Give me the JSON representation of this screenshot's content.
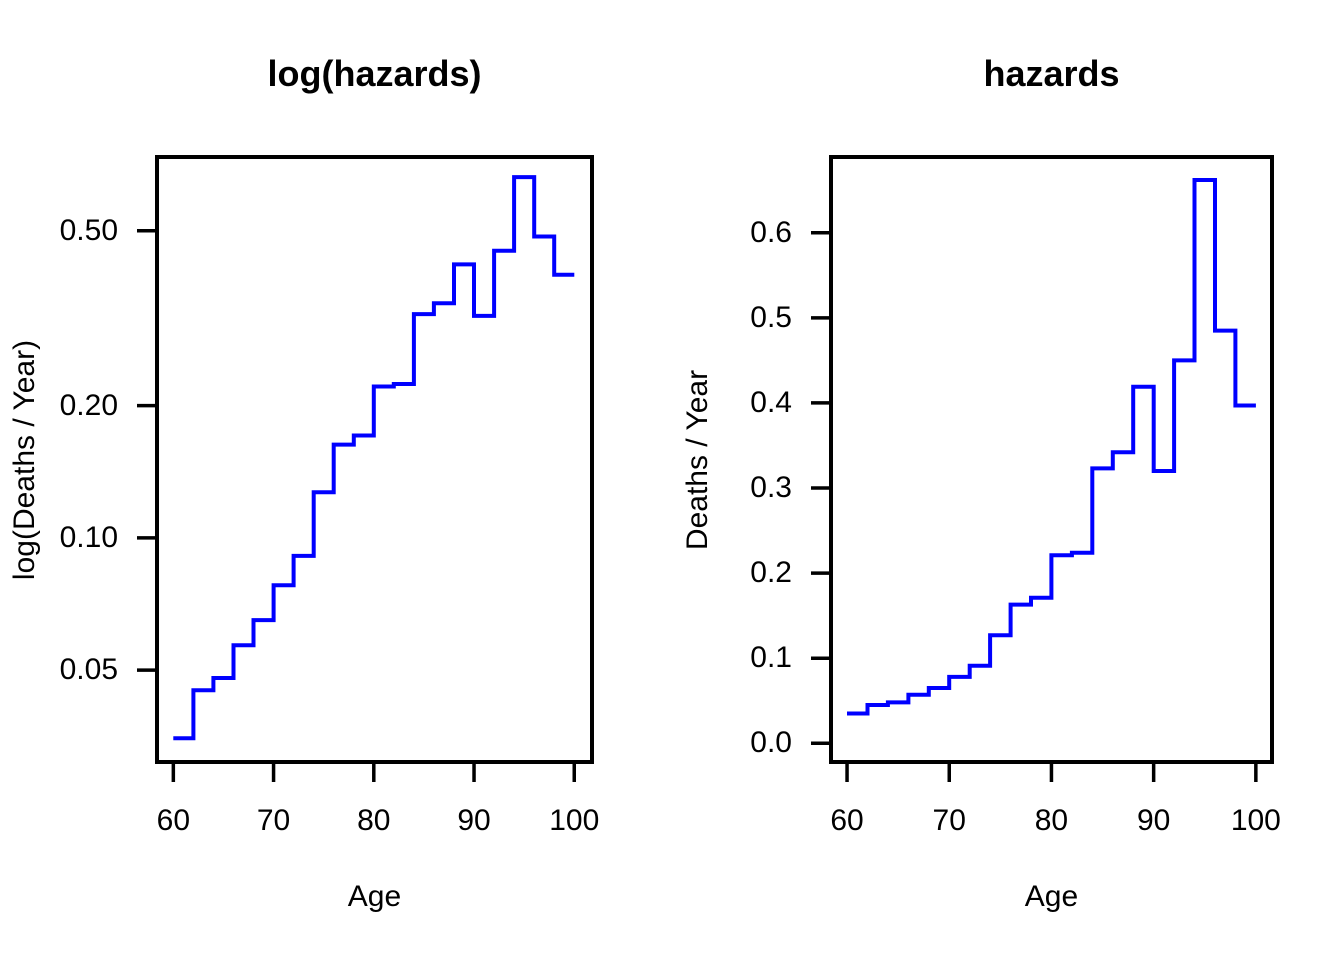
{
  "figure": {
    "background": "#FFFFFF",
    "axis_color": "#000000",
    "line_color": "#0000FF"
  },
  "chart_data": [
    {
      "type": "line",
      "subtype": "step",
      "title": "log(hazards)",
      "xlabel": "Age",
      "ylabel": "log(Deaths / Year)",
      "yscale": "log",
      "grid": false,
      "legend": "none",
      "x_ticks": [
        60,
        70,
        80,
        90,
        100
      ],
      "y_ticks": [
        0.05,
        0.1,
        0.2,
        0.5
      ],
      "y_tick_labels": [
        "0.05",
        "0.10",
        "0.20",
        "0.50"
      ],
      "xlim": [
        58.4,
        101.8
      ],
      "ylim": [
        0.031,
        0.735
      ],
      "age_breaks": [
        60,
        62,
        64,
        66,
        68,
        70,
        72,
        74,
        76,
        78,
        80,
        82,
        84,
        86,
        88,
        90,
        92,
        94,
        96,
        98,
        100
      ],
      "hazard_values": [
        0.035,
        0.045,
        0.048,
        0.057,
        0.065,
        0.078,
        0.091,
        0.127,
        0.163,
        0.171,
        0.221,
        0.224,
        0.323,
        0.342,
        0.419,
        0.32,
        0.45,
        0.662,
        0.485,
        0.397
      ],
      "line_color": "#0000FF"
    },
    {
      "type": "line",
      "subtype": "step",
      "title": "hazards",
      "xlabel": "Age",
      "ylabel": "Deaths / Year",
      "yscale": "linear",
      "grid": false,
      "legend": "none",
      "x_ticks": [
        60,
        70,
        80,
        90,
        100
      ],
      "y_ticks": [
        0.0,
        0.1,
        0.2,
        0.3,
        0.4,
        0.5,
        0.6
      ],
      "y_tick_labels": [
        "0.0",
        "0.1",
        "0.2",
        "0.3",
        "0.4",
        "0.5",
        "0.6"
      ],
      "xlim": [
        58.4,
        101.6
      ],
      "ylim": [
        -0.022,
        0.689
      ],
      "age_breaks": [
        60,
        62,
        64,
        66,
        68,
        70,
        72,
        74,
        76,
        78,
        80,
        82,
        84,
        86,
        88,
        90,
        92,
        94,
        96,
        98,
        100
      ],
      "hazard_values": [
        0.035,
        0.045,
        0.048,
        0.057,
        0.065,
        0.078,
        0.091,
        0.127,
        0.163,
        0.171,
        0.221,
        0.224,
        0.323,
        0.342,
        0.419,
        0.32,
        0.45,
        0.662,
        0.485,
        0.397
      ],
      "line_color": "#0000FF"
    }
  ]
}
